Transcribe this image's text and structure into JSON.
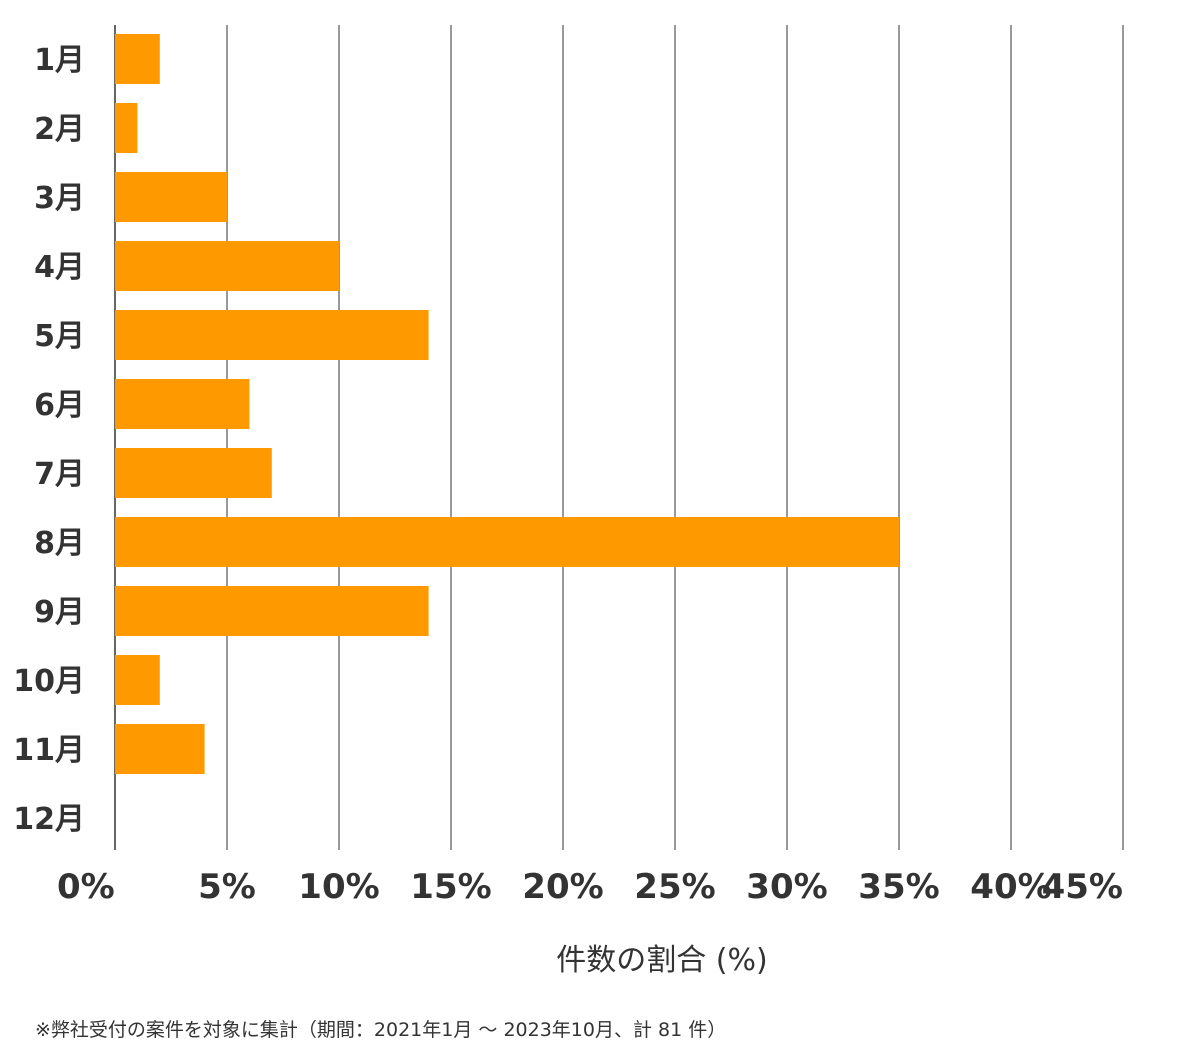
{
  "chart_data": {
    "type": "bar",
    "orientation": "horizontal",
    "categories": [
      "1月",
      "2月",
      "3月",
      "4月",
      "5月",
      "6月",
      "7月",
      "8月",
      "9月",
      "10月",
      "11月",
      "12月"
    ],
    "values": [
      2.0,
      1.0,
      5.0,
      10.0,
      14.0,
      6.0,
      7.0,
      35.0,
      14.0,
      2.0,
      4.0,
      0.0
    ],
    "xlim": [
      0,
      45
    ],
    "x_ticks": [
      "0%",
      "5%",
      "10%",
      "15%",
      "20%",
      "25%",
      "30%",
      "35%",
      "40%",
      "45%"
    ],
    "xlabel": "件数の割合 (%)",
    "grid": "vertical",
    "bar_color": "#FF9900",
    "grid_color": "#333333"
  },
  "footnote": "※弊社受付の案件を対象に集計（期間：2021年1月 ～ 2023年10月、計 81 件）"
}
